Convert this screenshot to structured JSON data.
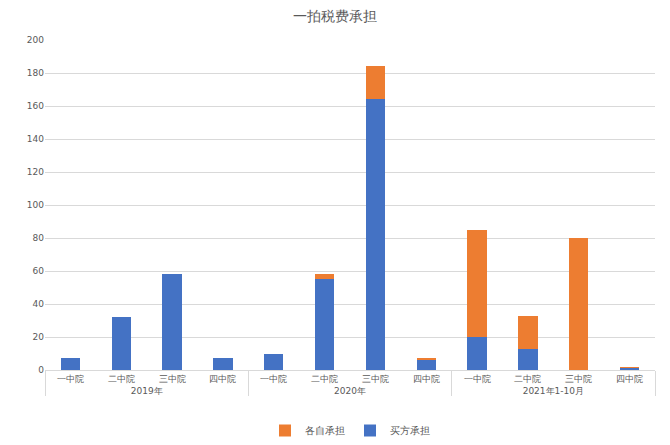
{
  "chart_data": {
    "type": "bar",
    "title": "一拍税费承担",
    "categories": [
      [
        "2019年",
        "一中院"
      ],
      [
        "2019年",
        "二中院"
      ],
      [
        "2019年",
        "三中院"
      ],
      [
        "2019年",
        "四中院"
      ],
      [
        "2020年",
        "一中院"
      ],
      [
        "2020年",
        "二中院"
      ],
      [
        "2020年",
        "三中院"
      ],
      [
        "2020年",
        "四中院"
      ],
      [
        "2021年1-10月",
        "一中院"
      ],
      [
        "2021年1-10月",
        "二中院"
      ],
      [
        "2021年1-10月",
        "三中院"
      ],
      [
        "2021年1-10月",
        "四中院"
      ]
    ],
    "series": [
      {
        "name": "买方承担",
        "color": "#4472c4",
        "values": [
          7,
          32,
          58,
          7,
          10,
          55,
          164,
          6,
          20,
          13,
          0,
          1
        ]
      },
      {
        "name": "各自承担",
        "color": "#ed7d31",
        "values": [
          0,
          0,
          0,
          0,
          0,
          3,
          20,
          1,
          65,
          20,
          80,
          1
        ]
      }
    ],
    "stacked": true,
    "ylim": [
      0,
      200
    ],
    "yticks": [
      0,
      20,
      40,
      60,
      80,
      100,
      120,
      140,
      160,
      180,
      200
    ],
    "grid": true,
    "legend": "bottom"
  }
}
